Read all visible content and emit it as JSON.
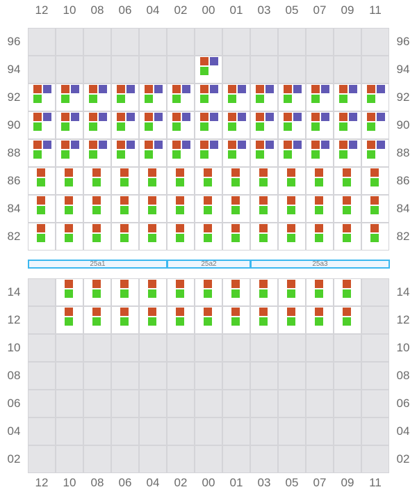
{
  "columns": [
    "12",
    "10",
    "08",
    "06",
    "04",
    "02",
    "00",
    "01",
    "03",
    "05",
    "07",
    "09",
    "11"
  ],
  "colors": {
    "orange": "#cc5128",
    "purple": "#6159b5",
    "green": "#4ecf2a",
    "inactive": "#e4e4e7",
    "border": "#d4d4d8",
    "band_border": "#3db8f0"
  },
  "top_block": [
    {
      "row": "96",
      "cells": [
        "",
        "",
        "",
        "",
        "",
        "",
        "",
        "",
        "",
        "",
        "",
        "",
        ""
      ]
    },
    {
      "row": "94",
      "cells": [
        "",
        "",
        "",
        "",
        "",
        "",
        "opg",
        "",
        "",
        "",
        "",
        "",
        ""
      ]
    },
    {
      "row": "92",
      "cells": [
        "opg",
        "opg",
        "opg",
        "opg",
        "opg",
        "opg",
        "opg",
        "opg",
        "opg",
        "opg",
        "opg",
        "opg",
        "opg"
      ]
    },
    {
      "row": "90",
      "cells": [
        "opg",
        "opg",
        "opg",
        "opg",
        "opg",
        "opg",
        "opg",
        "opg",
        "opg",
        "opg",
        "opg",
        "opg",
        "opg"
      ]
    },
    {
      "row": "88",
      "cells": [
        "opg",
        "opg",
        "opg",
        "opg",
        "opg",
        "opg",
        "opg",
        "opg",
        "opg",
        "opg",
        "opg",
        "opg",
        "opg"
      ]
    },
    {
      "row": "86",
      "cells": [
        "og",
        "og",
        "og",
        "og",
        "og",
        "og",
        "og",
        "og",
        "og",
        "og",
        "og",
        "og",
        "og"
      ]
    },
    {
      "row": "84",
      "cells": [
        "og",
        "og",
        "og",
        "og",
        "og",
        "og",
        "og",
        "og",
        "og",
        "og",
        "og",
        "og",
        "og"
      ]
    },
    {
      "row": "82",
      "cells": [
        "og",
        "og",
        "og",
        "og",
        "og",
        "og",
        "og",
        "og",
        "og",
        "og",
        "og",
        "og",
        "og"
      ]
    }
  ],
  "bands": [
    {
      "label": "25a1",
      "from": 0,
      "to": 5
    },
    {
      "label": "25a2",
      "from": 5,
      "to": 8
    },
    {
      "label": "25a3",
      "from": 8,
      "to": 13
    }
  ],
  "bottom_block": [
    {
      "row": "14",
      "cells": [
        "",
        "og",
        "og",
        "og",
        "og",
        "og",
        "og",
        "og",
        "og",
        "og",
        "og",
        "og",
        ""
      ]
    },
    {
      "row": "12",
      "cells": [
        "",
        "og",
        "og",
        "og",
        "og",
        "og",
        "og",
        "og",
        "og",
        "og",
        "og",
        "og",
        ""
      ]
    },
    {
      "row": "10",
      "cells": [
        "",
        "",
        "",
        "",
        "",
        "",
        "",
        "",
        "",
        "",
        "",
        "",
        ""
      ]
    },
    {
      "row": "08",
      "cells": [
        "",
        "",
        "",
        "",
        "",
        "",
        "",
        "",
        "",
        "",
        "",
        "",
        ""
      ]
    },
    {
      "row": "06",
      "cells": [
        "",
        "",
        "",
        "",
        "",
        "",
        "",
        "",
        "",
        "",
        "",
        "",
        ""
      ]
    },
    {
      "row": "04",
      "cells": [
        "",
        "",
        "",
        "",
        "",
        "",
        "",
        "",
        "",
        "",
        "",
        "",
        ""
      ]
    },
    {
      "row": "02",
      "cells": [
        "",
        "",
        "",
        "",
        "",
        "",
        "",
        "",
        "",
        "",
        "",
        "",
        ""
      ]
    }
  ]
}
